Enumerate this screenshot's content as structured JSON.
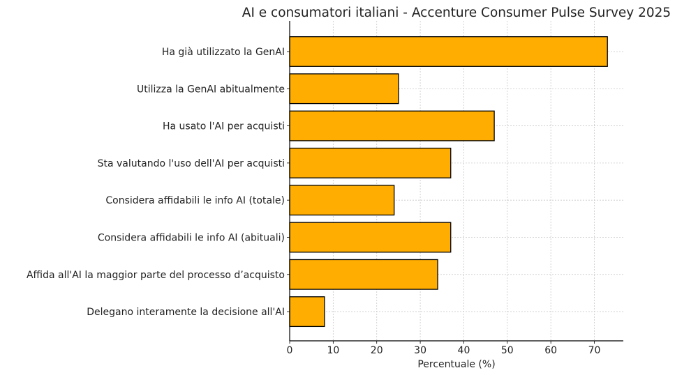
{
  "chart_data": {
    "type": "bar",
    "orientation": "horizontal",
    "title": "AI e consumatori italiani - Accenture Consumer Pulse Survey 2025",
    "xlabel": "Percentuale (%)",
    "ylabel": "",
    "categories": [
      "Ha già utilizzato la GenAI",
      "Utilizza la GenAI abitualmente",
      "Ha usato l'AI per acquisti",
      "Sta valutando l'uso dell'AI per acquisti",
      "Considera affidabili le info AI (totale)",
      "Considera affidabili le info AI (abituali)",
      "Affida all'AI la maggior parte del processo d’acquisto",
      "Delegano interamente la decisione all'AI"
    ],
    "values": [
      73,
      25,
      47,
      37,
      24,
      37,
      34,
      8
    ],
    "xlim": [
      0,
      76.65
    ],
    "xticks": [
      0,
      10,
      20,
      30,
      40,
      50,
      60,
      70
    ],
    "grid": true,
    "bar_color": "#FFAD00",
    "edge_color": "#000000"
  }
}
